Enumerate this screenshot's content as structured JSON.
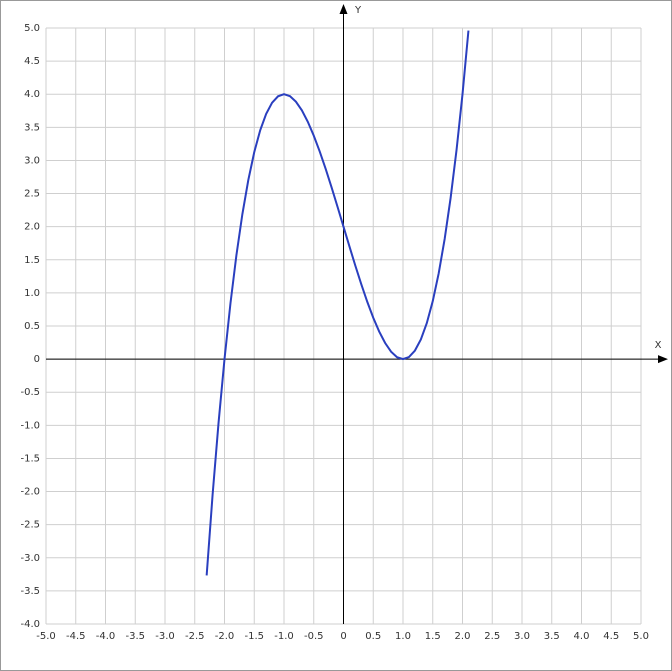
{
  "chart_data": {
    "type": "line",
    "xlabel": "X",
    "ylabel": "Y",
    "color": "#2a3fbf",
    "grid": true,
    "xlim": [
      -5,
      5
    ],
    "ylim": [
      -4,
      5
    ],
    "xticks": [
      {
        "value": -5,
        "label": "-5.0"
      },
      -4.5,
      {
        "value": -4,
        "label": "-4.0"
      },
      -3.5,
      {
        "value": -3,
        "label": "-3.0"
      },
      -2.5,
      {
        "value": -2,
        "label": "-2.0"
      },
      -1.5,
      {
        "value": -1,
        "label": "-1.0"
      },
      -0.5,
      0,
      0.5,
      {
        "value": 1,
        "label": "1.0"
      },
      1.5,
      {
        "value": 2,
        "label": "2.0"
      },
      2.5,
      {
        "value": 3,
        "label": "3.0"
      },
      3.5,
      {
        "value": 4,
        "label": "4.0"
      },
      4.5,
      {
        "value": 5,
        "label": "5.0"
      }
    ],
    "yticks": [
      {
        "value": -4,
        "label": "-4.0"
      },
      -3.5,
      {
        "value": -3,
        "label": "-3.0"
      },
      -2.5,
      {
        "value": -2,
        "label": "-2.0"
      },
      -1.5,
      {
        "value": -1,
        "label": "-1.0"
      },
      -0.5,
      0,
      0.5,
      {
        "value": 1,
        "label": "1.0"
      },
      1.5,
      {
        "value": 2,
        "label": "2.0"
      },
      2.5,
      {
        "value": 3,
        "label": "3.0"
      },
      3.5,
      {
        "value": 4,
        "label": "4.0"
      },
      4.5,
      {
        "value": 5,
        "label": "5.0"
      }
    ],
    "x": [
      -2.3,
      -2.2,
      -2.1,
      -2.0,
      -1.9,
      -1.8,
      -1.7,
      -1.6,
      -1.5,
      -1.4,
      -1.3,
      -1.2,
      -1.1,
      -1.0,
      -0.9,
      -0.8,
      -0.7,
      -0.6,
      -0.5,
      -0.4,
      -0.3,
      -0.2,
      -0.1,
      0,
      0.1,
      0.2,
      0.3,
      0.4,
      0.5,
      0.6,
      0.7,
      0.8,
      0.9,
      1.0,
      1.1,
      1.2,
      1.3,
      1.4,
      1.5,
      1.6,
      1.7,
      1.8,
      1.9,
      2.0,
      2.1
    ],
    "values": [
      -3.267,
      -2.048,
      -0.961,
      0,
      0.841,
      1.568,
      2.187,
      2.704,
      3.125,
      3.456,
      3.703,
      3.872,
      3.969,
      4,
      3.971,
      3.888,
      3.757,
      3.584,
      3.375,
      3.136,
      2.873,
      2.592,
      2.299,
      2,
      1.701,
      1.408,
      1.127,
      0.864,
      0.625,
      0.416,
      0.243,
      0.112,
      0.029,
      0,
      0.031,
      0.128,
      0.297,
      0.544,
      0.875,
      1.296,
      1.813,
      2.432,
      3.159,
      4,
      4.961
    ]
  }
}
